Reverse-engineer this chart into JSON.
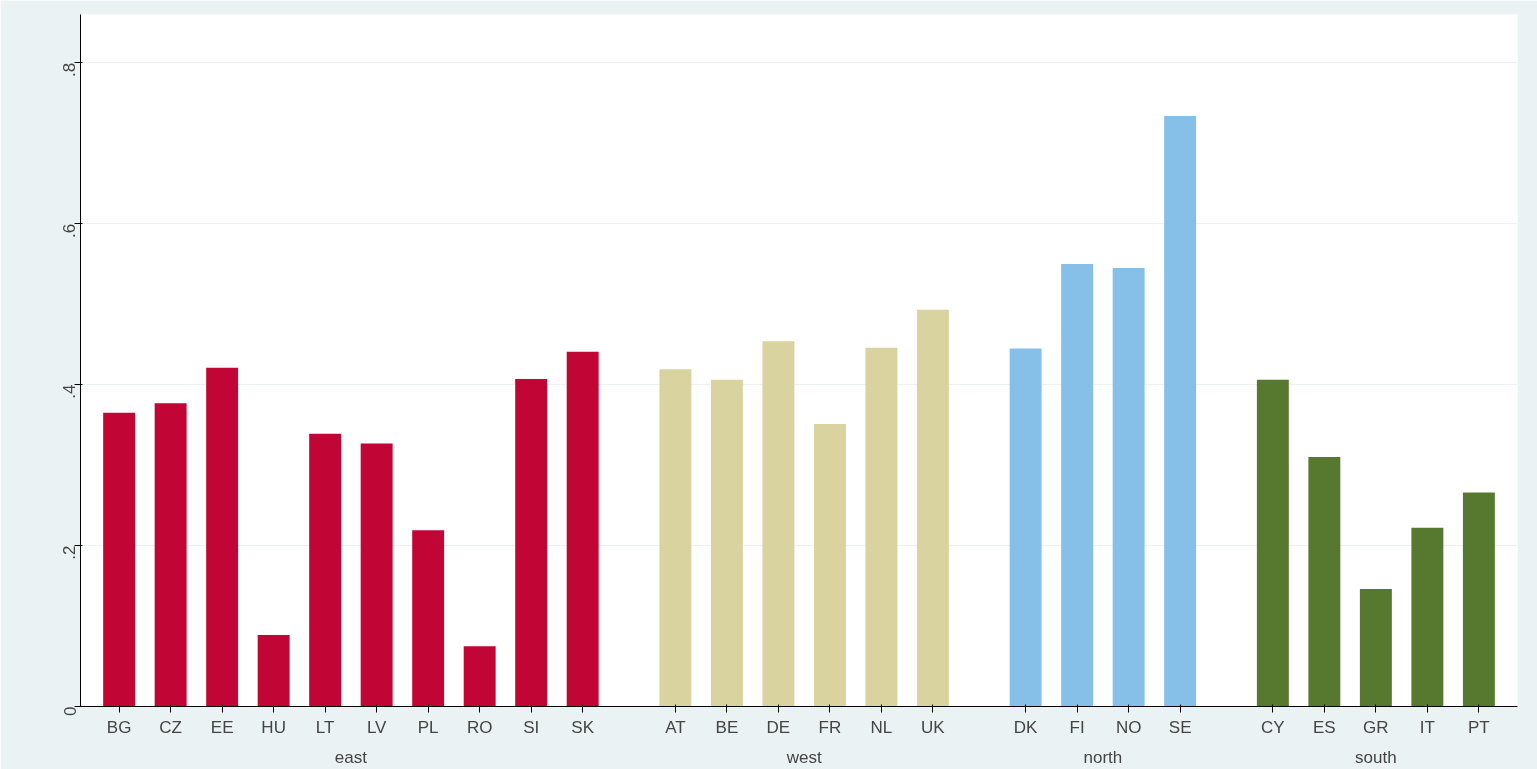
{
  "chart_data": {
    "type": "bar",
    "categories": [
      "BG",
      "CZ",
      "EE",
      "HU",
      "LT",
      "LV",
      "PL",
      "RO",
      "SI",
      "SK",
      "AT",
      "BE",
      "DE",
      "FR",
      "NL",
      "UK",
      "DK",
      "FI",
      "NO",
      "SE",
      "CY",
      "ES",
      "GR",
      "IT",
      "PT"
    ],
    "series": [
      {
        "name": "east",
        "color": "#c10534",
        "values": [
          0.365,
          0.377,
          0.421,
          0.089,
          0.339,
          0.327,
          0.219,
          0.075,
          0.407,
          0.441,
          null,
          null,
          null,
          null,
          null,
          null,
          null,
          null,
          null,
          null,
          null,
          null,
          null,
          null,
          null
        ]
      },
      {
        "name": "west",
        "color": "#d9d39f",
        "values": [
          null,
          null,
          null,
          null,
          null,
          null,
          null,
          null,
          null,
          null,
          0.419,
          0.406,
          0.454,
          0.351,
          0.446,
          0.493,
          null,
          null,
          null,
          null,
          null,
          null,
          null,
          null,
          null
        ]
      },
      {
        "name": "north",
        "color": "#86c0e8",
        "values": [
          null,
          null,
          null,
          null,
          null,
          null,
          null,
          null,
          null,
          null,
          null,
          null,
          null,
          null,
          null,
          null,
          0.445,
          0.55,
          0.545,
          0.734,
          null,
          null,
          null,
          null,
          null
        ]
      },
      {
        "name": "south",
        "color": "#56782f",
        "values": [
          null,
          null,
          null,
          null,
          null,
          null,
          null,
          null,
          null,
          null,
          null,
          null,
          null,
          null,
          null,
          null,
          null,
          null,
          null,
          null,
          0.406,
          0.31,
          0.146,
          0.222,
          0.266
        ]
      }
    ],
    "ylim": [
      0,
      0.86
    ],
    "yticks": [
      0,
      {
        "value": 0.2,
        "label": ".2"
      },
      {
        "value": 0.4,
        "label": ".4"
      },
      {
        "value": 0.6,
        "label": ".6"
      },
      {
        "value": 0.8,
        "label": ".8"
      }
    ],
    "grid": "y"
  }
}
